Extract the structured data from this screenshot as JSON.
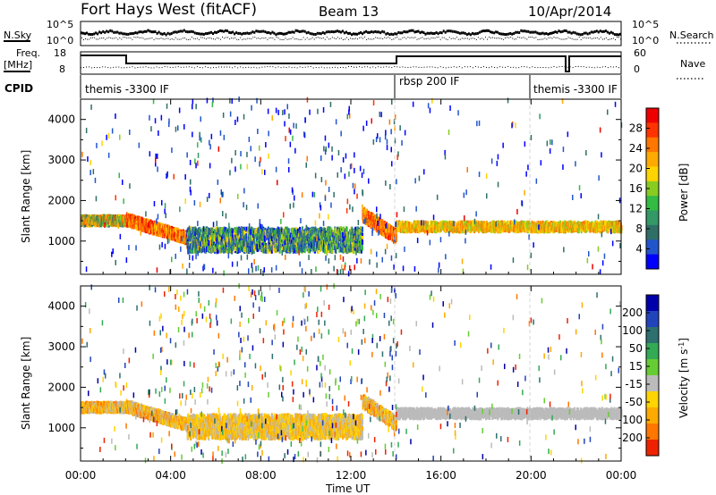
{
  "header": {
    "station": "Fort Hays West (fitACF)",
    "beam": "Beam 13",
    "date": "10/Apr/2014"
  },
  "noise_panel": {
    "left_label": "N.Sky",
    "right_label": "N.Search",
    "left_ticks": [
      "10^5",
      "10^0"
    ],
    "right_ticks": [
      "10^5",
      "10^0"
    ]
  },
  "freq_panel": {
    "left_label_1": "Freq.",
    "left_label_2": "[MHz]",
    "right_label": "Nave",
    "left_ticks": [
      "18",
      "8"
    ],
    "right_ticks": [
      "60",
      "0"
    ]
  },
  "cpid_panel": {
    "label": "CPID",
    "segments": [
      {
        "name": "themis -3300 IF",
        "start_hour": 0.0,
        "end_hour": 14.0
      },
      {
        "name": "rbsp 200 IF",
        "start_hour": 14.0,
        "end_hour": 20.0
      },
      {
        "name": "themis -3300 IF",
        "start_hour": 20.0,
        "end_hour": 24.0
      }
    ]
  },
  "x_axis": {
    "label": "Time UT",
    "ticks": [
      "00:00",
      "04:00",
      "08:00",
      "12:00",
      "16:00",
      "20:00",
      "00:00"
    ]
  },
  "power_panel": {
    "ylabel": "Slant Range [km]",
    "yticks": [
      "1000",
      "2000",
      "3000",
      "4000"
    ],
    "colorbar_label": "Power [dB]",
    "colorbar_ticks": [
      "4",
      "8",
      "12",
      "16",
      "20",
      "24",
      "28"
    ],
    "colors": [
      "#0000ff",
      "#2255cc",
      "#2f6f66",
      "#339966",
      "#33bb44",
      "#88cc22",
      "#ffd400",
      "#ffaa00",
      "#ff7700",
      "#ff3300",
      "#ee0000"
    ]
  },
  "velocity_panel": {
    "ylabel": "Slant Range [km]",
    "yticks": [
      "1000",
      "2000",
      "3000",
      "4000"
    ],
    "colorbar_label": "Velocity [m s^-1]",
    "colorbar_ticks": [
      "200",
      "100",
      "50",
      "15",
      "-15",
      "-50",
      "-100",
      "-200"
    ],
    "colors": [
      "#0000aa",
      "#2244bb",
      "#2e6f6f",
      "#33aa55",
      "#66cc33",
      "#bbbbbb",
      "#ffd400",
      "#ffaa00",
      "#ff7700",
      "#ee2200"
    ]
  },
  "chart_data": {
    "type": "heatmap",
    "x_range_hours": [
      0,
      24
    ],
    "y_range_km": [
      180,
      4500
    ],
    "panels": [
      "Power [dB]",
      "Velocity [m s^-1]"
    ],
    "features": [
      {
        "name": "near-range band",
        "start_hour": 0.0,
        "end_hour": 2.0,
        "range_km": [
          1400,
          1600
        ]
      },
      {
        "name": "descending band",
        "start_hour": 2.0,
        "end_hour": 4.7,
        "range_km": [
          950,
          1400
        ]
      },
      {
        "name": "main echo band",
        "start_hour": 4.7,
        "end_hour": 12.5,
        "range_km": [
          750,
          1300
        ]
      },
      {
        "name": "evening band",
        "start_hour": 12.5,
        "end_hour": 14.0,
        "range_km": [
          950,
          1500
        ]
      },
      {
        "name": "late band",
        "start_hour": 14.0,
        "end_hour": 24.0,
        "range_km": [
          1250,
          1450
        ]
      }
    ]
  }
}
